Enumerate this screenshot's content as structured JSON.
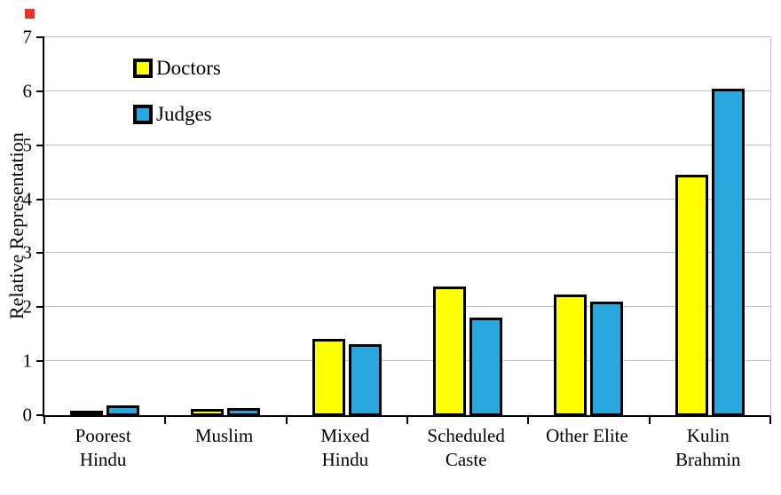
{
  "chart_data": {
    "type": "bar",
    "title": "",
    "xlabel": "",
    "ylabel": "Relative Representation",
    "ylim": [
      0,
      7
    ],
    "yticks": [
      0,
      1,
      2,
      3,
      4,
      5,
      6,
      7
    ],
    "grid": true,
    "legend_position": "top-left-inside",
    "categories": [
      "Poorest Hindu",
      "Muslim",
      "Mixed Hindu",
      "Scheduled Caste",
      "Other Elite",
      "Kulin Brahmin"
    ],
    "categories_wrapped": [
      [
        "Poorest",
        "Hindu"
      ],
      [
        "Muslim"
      ],
      [
        "Mixed",
        "Hindu"
      ],
      [
        "Scheduled",
        "Caste"
      ],
      [
        "Other Elite"
      ],
      [
        "Kulin",
        "Brahmin"
      ]
    ],
    "series": [
      {
        "name": "Doctors",
        "color": "#FFFF00",
        "values": [
          0.08,
          0.11,
          1.41,
          2.38,
          2.23,
          4.46
        ]
      },
      {
        "name": "Judges",
        "color": "#29A8DF",
        "values": [
          0.18,
          0.13,
          1.31,
          1.8,
          2.1,
          6.05
        ]
      }
    ],
    "bar_outline_color": "#000000",
    "gridline_color": "#BFBFBF",
    "axis_color": "#000000"
  }
}
